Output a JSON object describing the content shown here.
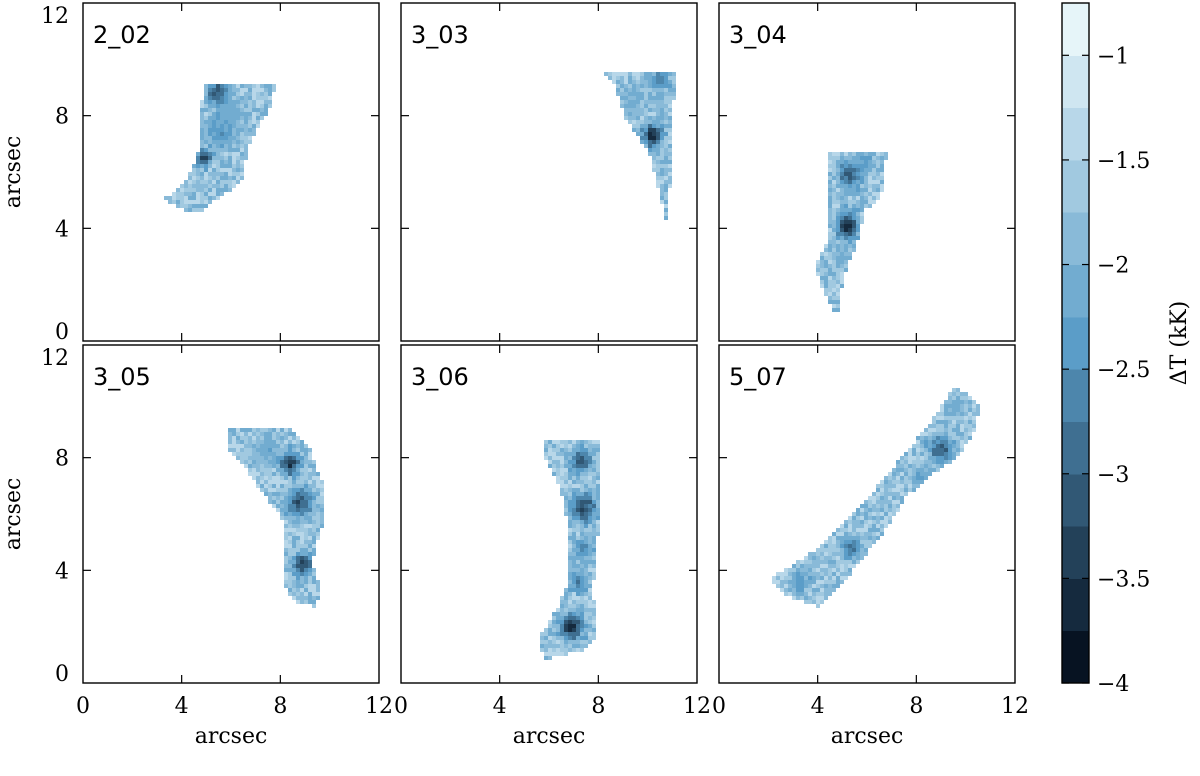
{
  "chart_data": {
    "type": "heatmap",
    "x_label": "arcsec",
    "y_label": "arcsec",
    "x_ticks": [
      "0",
      "4",
      "8",
      "12"
    ],
    "y_ticks": [
      "0",
      "4",
      "8",
      "12"
    ],
    "xlim": [
      0,
      12
    ],
    "ylim": [
      0,
      12
    ],
    "colorbar": {
      "label": "ΔT (kK)",
      "range": [
        -4,
        -0.75
      ],
      "ticks": [
        "−1",
        "−1.5",
        "−2",
        "−2.5",
        "−3",
        "−3.5",
        "−4"
      ],
      "tick_values": [
        -1,
        -1.5,
        -2,
        -2.5,
        -3,
        -3.5,
        -4
      ],
      "levels": 13,
      "color_low": "#000814",
      "color_mid": "#5b9dc8",
      "color_high": "#f2fcfd"
    },
    "panels": [
      {
        "label": "2_02",
        "outline": [
          [
            5.0,
            9.1
          ],
          [
            7.8,
            9.1
          ],
          [
            7.6,
            8.3
          ],
          [
            6.8,
            7.1
          ],
          [
            6.4,
            5.6
          ],
          [
            5.2,
            4.9
          ],
          [
            4.6,
            4.5
          ],
          [
            4.0,
            4.7
          ],
          [
            3.2,
            5.0
          ],
          [
            4.0,
            5.5
          ],
          [
            4.6,
            6.4
          ],
          [
            4.8,
            7.6
          ],
          [
            4.8,
            8.5
          ]
        ],
        "cores": [
          [
            5.5,
            8.8,
            0.45,
            -3.4
          ],
          [
            5.6,
            7.4,
            0.6,
            -2.6
          ],
          [
            4.9,
            6.5,
            0.3,
            -3.7
          ],
          [
            6.1,
            8.1,
            0.5,
            -2.2
          ]
        ]
      },
      {
        "label": "3_03",
        "outline": [
          [
            8.0,
            9.6
          ],
          [
            11.1,
            9.6
          ],
          [
            11.0,
            6.6
          ],
          [
            10.8,
            4.0
          ],
          [
            10.5,
            5.2
          ],
          [
            10.1,
            6.6
          ],
          [
            9.1,
            7.9
          ],
          [
            8.6,
            9.2
          ]
        ],
        "cores": [
          [
            10.2,
            7.3,
            0.4,
            -3.9
          ],
          [
            10.5,
            9.3,
            0.4,
            -2.8
          ],
          [
            9.4,
            8.6,
            0.5,
            -2.1
          ]
        ]
      },
      {
        "label": "3_04",
        "outline": [
          [
            4.5,
            6.7
          ],
          [
            6.8,
            6.7
          ],
          [
            6.6,
            5.2
          ],
          [
            5.9,
            4.6
          ],
          [
            5.6,
            3.4
          ],
          [
            5.1,
            2.4
          ],
          [
            4.8,
            0.9
          ],
          [
            4.3,
            1.6
          ],
          [
            3.9,
            2.6
          ],
          [
            4.4,
            3.6
          ],
          [
            4.5,
            5.0
          ],
          [
            4.5,
            6.0
          ]
        ],
        "cores": [
          [
            5.2,
            4.1,
            0.45,
            -3.9
          ],
          [
            5.3,
            5.9,
            0.45,
            -3.3
          ],
          [
            5.0,
            3.0,
            0.4,
            -2.2
          ],
          [
            5.9,
            6.3,
            0.4,
            -2.4
          ]
        ]
      },
      {
        "label": "3_05",
        "outline": [
          [
            5.9,
            9.1
          ],
          [
            8.3,
            9.1
          ],
          [
            9.2,
            8.3
          ],
          [
            9.8,
            6.9
          ],
          [
            9.7,
            5.6
          ],
          [
            9.3,
            4.3
          ],
          [
            9.7,
            3.2
          ],
          [
            9.4,
            2.7
          ],
          [
            8.6,
            2.9
          ],
          [
            8.1,
            3.5
          ],
          [
            8.2,
            4.6
          ],
          [
            8.2,
            5.7
          ],
          [
            7.4,
            6.6
          ],
          [
            6.6,
            7.6
          ],
          [
            5.8,
            8.4
          ]
        ],
        "cores": [
          [
            8.4,
            7.8,
            0.4,
            -3.8
          ],
          [
            8.8,
            6.4,
            0.5,
            -3.4
          ],
          [
            8.9,
            4.2,
            0.4,
            -3.6
          ],
          [
            7.4,
            8.3,
            0.5,
            -2.3
          ]
        ]
      },
      {
        "label": "3_06",
        "outline": [
          [
            5.8,
            8.6
          ],
          [
            8.0,
            8.6
          ],
          [
            8.1,
            7.2
          ],
          [
            8.0,
            5.4
          ],
          [
            7.8,
            3.4
          ],
          [
            7.9,
            1.6
          ],
          [
            7.4,
            1.1
          ],
          [
            6.6,
            1.0
          ],
          [
            5.8,
            0.8
          ],
          [
            5.6,
            1.6
          ],
          [
            6.3,
            2.6
          ],
          [
            6.8,
            3.6
          ],
          [
            6.8,
            5.4
          ],
          [
            6.5,
            6.8
          ],
          [
            5.9,
            7.8
          ]
        ],
        "cores": [
          [
            7.4,
            6.2,
            0.5,
            -3.6
          ],
          [
            7.3,
            7.9,
            0.4,
            -3.3
          ],
          [
            6.9,
            2.0,
            0.45,
            -3.9
          ],
          [
            7.2,
            3.6,
            0.35,
            -3.0
          ],
          [
            7.4,
            4.8,
            0.4,
            -2.7
          ]
        ]
      },
      {
        "label": "5_07",
        "outline": [
          [
            9.6,
            10.6
          ],
          [
            10.6,
            9.8
          ],
          [
            10.3,
            8.8
          ],
          [
            9.7,
            8.0
          ],
          [
            8.6,
            7.4
          ],
          [
            7.6,
            6.6
          ],
          [
            6.8,
            5.5
          ],
          [
            5.8,
            4.4
          ],
          [
            4.8,
            3.3
          ],
          [
            4.0,
            2.7
          ],
          [
            3.3,
            2.9
          ],
          [
            2.4,
            3.3
          ],
          [
            2.1,
            3.8
          ],
          [
            3.0,
            4.2
          ],
          [
            4.0,
            4.8
          ],
          [
            4.9,
            5.6
          ],
          [
            5.8,
            6.3
          ],
          [
            6.7,
            7.3
          ],
          [
            7.7,
            8.3
          ],
          [
            8.6,
            9.3
          ]
        ],
        "cores": [
          [
            9.0,
            8.3,
            0.45,
            -3.4
          ],
          [
            5.3,
            4.8,
            0.4,
            -3.0
          ],
          [
            8.2,
            7.3,
            0.4,
            -2.4
          ],
          [
            3.3,
            3.6,
            0.45,
            -2.5
          ],
          [
            9.6,
            9.8,
            0.4,
            -2.2
          ]
        ]
      }
    ]
  }
}
